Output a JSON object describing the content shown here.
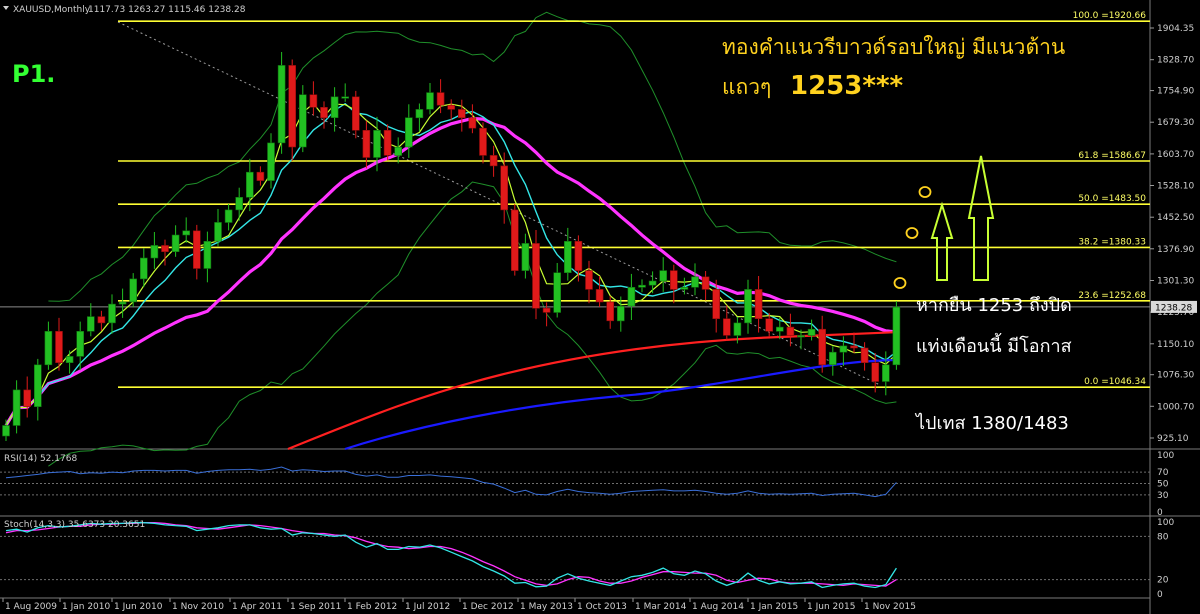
{
  "window": {
    "symbol_label": "XAUUSD,Monthly",
    "ohlc_label": "1117.73 1263.27 1115.46 1238.28",
    "panel_tag": "P1."
  },
  "annotations": {
    "headline_line1": "ทองคำแนวรีบาวด์รอบใหญ่ มีแนวต้าน",
    "headline_line2_prefix": "แถวๆ",
    "headline_line2_value": "1253***",
    "note_line1": "หากยืน 1253 ถึงปิด",
    "note_line2": "แท่งเดือนนี้ มีโอกาส",
    "note_line3": "ไปเทส 1380/1483"
  },
  "colors": {
    "background": "#000000",
    "bull_candle": "#22c022",
    "bear_candle": "#e01a1a",
    "fib_line": "#ffff33",
    "ma_magenta": "#ff33ff",
    "ma_red": "#ff2020",
    "ma_blue": "#1a1aff",
    "ma_cyan": "#33e6e6",
    "ma_yellowgreen": "#c8ff33",
    "bollinger": "#1f8f2a",
    "rsi_line": "#3a6fd8",
    "stoch_main": "#33e6e6",
    "stoch_signal": "#ff33ff",
    "headline_text": "#ffd21f",
    "panel_tag_text": "#33ff33",
    "arrow_outline": "#c8ff33"
  },
  "chart_data": {
    "type": "candlestick",
    "price_axis": {
      "ticks": [
        "1904.35",
        "1828.70",
        "1754.90",
        "1679.30",
        "1603.70",
        "1528.10",
        "1452.50",
        "1376.90",
        "1301.30",
        "1225.70",
        "1150.10",
        "1076.30",
        "1000.70",
        "925.10"
      ],
      "tick_values": [
        1904.35,
        1828.7,
        1754.9,
        1679.3,
        1603.7,
        1528.1,
        1452.5,
        1376.9,
        1301.3,
        1225.7,
        1150.1,
        1076.3,
        1000.7,
        925.1
      ],
      "current_price_label": "1238.28",
      "current_price": 1238.28
    },
    "fibonacci": [
      {
        "label": "100.0 =1920.66",
        "value": 1920.66
      },
      {
        "label": "61.8 =1586.67",
        "value": 1586.67
      },
      {
        "label": "50.0 =1483.50",
        "value": 1483.5
      },
      {
        "label": "38.2 =1380.33",
        "value": 1380.33
      },
      {
        "label": "23.6 =1252.68",
        "value": 1252.68
      },
      {
        "label": "0.0 =1046.34",
        "value": 1046.34
      }
    ],
    "time_axis": [
      "1 Aug 2009",
      "1 Jan 2010",
      "1 Jun 2010",
      "1 Nov 2010",
      "1 Apr 2011",
      "1 Sep 2011",
      "1 Feb 2012",
      "1 Jul 2012",
      "1 Dec 2012",
      "1 May 2013",
      "1 Oct 2013",
      "1 Mar 2014",
      "1 Aug 2014",
      "1 Jan 2015",
      "1 Jun 2015",
      "1 Nov 2015"
    ],
    "closes": [
      955,
      1040,
      1000,
      1100,
      1180,
      1105,
      1120,
      1180,
      1215,
      1200,
      1245,
      1250,
      1305,
      1355,
      1385,
      1370,
      1410,
      1420,
      1330,
      1395,
      1440,
      1470,
      1500,
      1560,
      1540,
      1630,
      1815,
      1620,
      1745,
      1715,
      1690,
      1740,
      1740,
      1660,
      1595,
      1660,
      1600,
      1620,
      1690,
      1710,
      1750,
      1720,
      1710,
      1690,
      1665,
      1600,
      1575,
      1470,
      1325,
      1390,
      1235,
      1225,
      1320,
      1395,
      1325,
      1280,
      1250,
      1205,
      1240,
      1285,
      1290,
      1300,
      1325,
      1280,
      1285,
      1310,
      1280,
      1210,
      1170,
      1200,
      1280,
      1210,
      1180,
      1190,
      1170,
      1170,
      1185,
      1100,
      1130,
      1145,
      1140,
      1105,
      1060,
      1100,
      1238
    ],
    "indicators": {
      "rsi_label": "RSI(14) 52.1768",
      "rsi_levels": [
        "100",
        "70",
        "50",
        "30",
        "0"
      ],
      "rsi_series": [
        60,
        62,
        64,
        66,
        69,
        70,
        71,
        67,
        69,
        68,
        70,
        69,
        72,
        73,
        73,
        72,
        73,
        73,
        68,
        71,
        73,
        74,
        74,
        75,
        73,
        75,
        79,
        72,
        74,
        73,
        71,
        72,
        72,
        66,
        63,
        65,
        61,
        61,
        64,
        64,
        65,
        63,
        62,
        60,
        58,
        52,
        49,
        42,
        34,
        38,
        31,
        30,
        36,
        40,
        36,
        34,
        33,
        31,
        33,
        36,
        37,
        38,
        39,
        37,
        37,
        38,
        36,
        33,
        31,
        33,
        37,
        33,
        31,
        32,
        31,
        32,
        33,
        29,
        31,
        32,
        33,
        30,
        27,
        31,
        52
      ],
      "stoch_label": "Stoch(14,3,3) 35.6373 20.3651",
      "stoch_levels": [
        "100",
        "80",
        "20",
        "0"
      ],
      "stoch_main": [
        88,
        90,
        86,
        92,
        95,
        93,
        94,
        96,
        98,
        97,
        98,
        98,
        99,
        99,
        98,
        96,
        95,
        94,
        88,
        90,
        92,
        95,
        96,
        96,
        92,
        90,
        91,
        82,
        85,
        84,
        82,
        80,
        82,
        72,
        65,
        70,
        62,
        62,
        66,
        65,
        68,
        64,
        58,
        52,
        46,
        38,
        32,
        25,
        15,
        16,
        10,
        11,
        22,
        28,
        22,
        18,
        15,
        12,
        18,
        24,
        26,
        30,
        36,
        28,
        26,
        32,
        28,
        18,
        12,
        17,
        29,
        19,
        14,
        17,
        14,
        15,
        17,
        9,
        12,
        14,
        15,
        11,
        9,
        13,
        36
      ],
      "stoch_signal": [
        85,
        88,
        88,
        89,
        91,
        93,
        94,
        94,
        96,
        97,
        97,
        98,
        98,
        99,
        99,
        98,
        96,
        95,
        92,
        91,
        90,
        92,
        94,
        96,
        95,
        93,
        91,
        88,
        86,
        84,
        84,
        82,
        81,
        78,
        73,
        69,
        66,
        65,
        63,
        64,
        66,
        66,
        63,
        58,
        52,
        45,
        39,
        32,
        24,
        19,
        14,
        12,
        14,
        20,
        24,
        23,
        18,
        15,
        15,
        18,
        23,
        27,
        31,
        31,
        30,
        29,
        29,
        26,
        19,
        16,
        19,
        22,
        21,
        17,
        15,
        15,
        15,
        14,
        13,
        12,
        14,
        13,
        12,
        11,
        20
      ]
    }
  }
}
